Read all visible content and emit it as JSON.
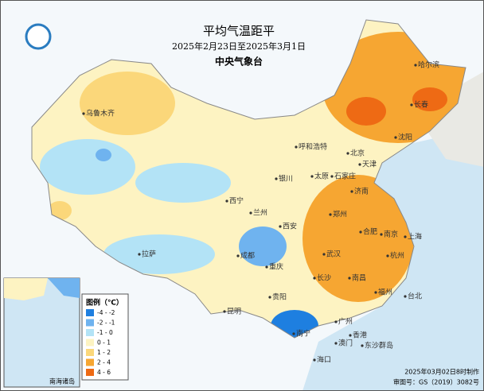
{
  "header": {
    "title": "平均气温距平",
    "subtitle": "2025年2月23日至2025年3月1日",
    "agency": "中央气象台"
  },
  "legend": {
    "title": "图例（℃）",
    "items": [
      {
        "label": "-4 - -2",
        "color": "#1e7fe0"
      },
      {
        "label": "-2 - -1",
        "color": "#6fb3ef"
      },
      {
        "label": "-1 - 0",
        "color": "#b3e3f6"
      },
      {
        "label": "0 - 1",
        "color": "#fdf3c2"
      },
      {
        "label": "1 - 2",
        "color": "#fbd77a"
      },
      {
        "label": "2 - 4",
        "color": "#f6a632"
      },
      {
        "label": "4 - 6",
        "color": "#ee6a14"
      }
    ]
  },
  "cities": [
    "乌鲁木齐",
    "哈尔滨",
    "长春",
    "沈阳",
    "呼和浩特",
    "北京",
    "天津",
    "石家庄",
    "太原",
    "济南",
    "银川",
    "西宁",
    "兰州",
    "西安",
    "郑州",
    "合肥",
    "南京",
    "上海",
    "杭州",
    "武汉",
    "成都",
    "重庆",
    "拉萨",
    "长沙",
    "南昌",
    "福州",
    "台北",
    "贵阳",
    "昆明",
    "南宁",
    "广州",
    "香港",
    "澳门",
    "海口",
    "东沙群岛"
  ],
  "inset": {
    "label": "南海诸岛"
  },
  "footer": {
    "made": "2025年03月02日8时制作",
    "approval": "审图号：GS（2019）3082号"
  }
}
